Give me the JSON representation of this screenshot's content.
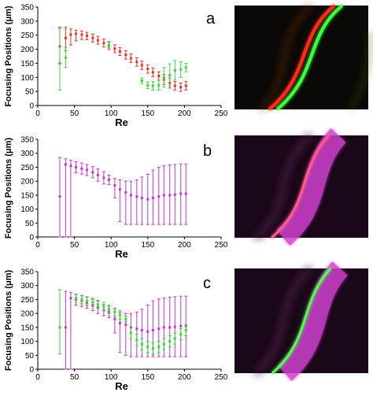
{
  "colors": {
    "red": "#e8322a",
    "green": "#3cd23c",
    "magenta": "#cc33cc",
    "axis": "#000000",
    "image_background": "#0b0a08"
  },
  "ylabel": "Focusing Positions (μm)",
  "xlabel": "Re",
  "chart_data": [
    {
      "panel": "a",
      "type": "scatter",
      "xlabel": "Re",
      "ylabel": "Focusing Positions (μm)",
      "xlim": [
        0,
        250
      ],
      "ylim": [
        0,
        350
      ],
      "xticks": [
        0,
        50,
        100,
        150,
        200,
        250
      ],
      "yticks": [
        0,
        50,
        100,
        150,
        200,
        250,
        300,
        350
      ],
      "series": [
        {
          "color": "red",
          "points": [
            {
              "x": 30,
              "y": 210,
              "lo": 150,
              "hi": 278
            },
            {
              "x": 38,
              "y": 240,
              "lo": 195,
              "hi": 278
            },
            {
              "x": 45,
              "y": 252,
              "lo": 215,
              "hi": 272
            },
            {
              "x": 52,
              "y": 255,
              "lo": 230,
              "hi": 268
            },
            {
              "x": 60,
              "y": 252,
              "lo": 235,
              "hi": 265
            },
            {
              "x": 67,
              "y": 248,
              "lo": 234,
              "hi": 260
            },
            {
              "x": 75,
              "y": 240,
              "lo": 226,
              "hi": 254
            },
            {
              "x": 82,
              "y": 232,
              "lo": 218,
              "hi": 246
            },
            {
              "x": 90,
              "y": 222,
              "lo": 208,
              "hi": 236
            },
            {
              "x": 97,
              "y": 213,
              "lo": 199,
              "hi": 227
            },
            {
              "x": 105,
              "y": 202,
              "lo": 188,
              "hi": 216
            },
            {
              "x": 112,
              "y": 192,
              "lo": 178,
              "hi": 206
            },
            {
              "x": 120,
              "y": 180,
              "lo": 165,
              "hi": 195
            },
            {
              "x": 127,
              "y": 168,
              "lo": 153,
              "hi": 183
            },
            {
              "x": 135,
              "y": 155,
              "lo": 140,
              "hi": 170
            },
            {
              "x": 142,
              "y": 143,
              "lo": 128,
              "hi": 158
            },
            {
              "x": 150,
              "y": 130,
              "lo": 115,
              "hi": 145
            },
            {
              "x": 157,
              "y": 118,
              "lo": 103,
              "hi": 133
            },
            {
              "x": 165,
              "y": 105,
              "lo": 90,
              "hi": 120
            },
            {
              "x": 172,
              "y": 92,
              "lo": 75,
              "hi": 110
            },
            {
              "x": 180,
              "y": 80,
              "lo": 62,
              "hi": 98
            },
            {
              "x": 187,
              "y": 70,
              "lo": 55,
              "hi": 85
            },
            {
              "x": 195,
              "y": 65,
              "lo": 50,
              "hi": 80
            },
            {
              "x": 202,
              "y": 70,
              "lo": 55,
              "hi": 85
            }
          ]
        },
        {
          "color": "green",
          "points": [
            {
              "x": 30,
              "y": 150,
              "lo": 55,
              "hi": 275
            },
            {
              "x": 38,
              "y": 170,
              "lo": 135,
              "hi": 205
            },
            {
              "x": 97,
              "y": 215,
              "lo": 205,
              "hi": 225
            },
            {
              "x": 142,
              "y": 88,
              "lo": 78,
              "hi": 98
            },
            {
              "x": 150,
              "y": 72,
              "lo": 60,
              "hi": 84
            },
            {
              "x": 157,
              "y": 70,
              "lo": 55,
              "hi": 85
            },
            {
              "x": 165,
              "y": 72,
              "lo": 55,
              "hi": 90
            },
            {
              "x": 172,
              "y": 100,
              "lo": 65,
              "hi": 135
            },
            {
              "x": 180,
              "y": 108,
              "lo": 70,
              "hi": 148
            },
            {
              "x": 187,
              "y": 125,
              "lo": 90,
              "hi": 160
            },
            {
              "x": 195,
              "y": 128,
              "lo": 100,
              "hi": 155
            },
            {
              "x": 202,
              "y": 135,
              "lo": 120,
              "hi": 150
            }
          ]
        }
      ]
    },
    {
      "panel": "b",
      "type": "scatter",
      "xlabel": "Re",
      "ylabel": "Focusing Positions (μm)",
      "xlim": [
        0,
        250
      ],
      "ylim": [
        0,
        350
      ],
      "xticks": [
        0,
        50,
        100,
        150,
        200,
        250
      ],
      "yticks": [
        0,
        50,
        100,
        150,
        200,
        250,
        300,
        350
      ],
      "series": [
        {
          "color": "magenta",
          "points": [
            {
              "x": 30,
              "y": 145,
              "lo": 0,
              "hi": 285
            },
            {
              "x": 38,
              "y": 260,
              "lo": 0,
              "hi": 280
            },
            {
              "x": 45,
              "y": 255,
              "lo": 0,
              "hi": 275
            },
            {
              "x": 52,
              "y": 250,
              "lo": 230,
              "hi": 270
            },
            {
              "x": 60,
              "y": 245,
              "lo": 225,
              "hi": 265
            },
            {
              "x": 67,
              "y": 240,
              "lo": 220,
              "hi": 260
            },
            {
              "x": 75,
              "y": 232,
              "lo": 212,
              "hi": 252
            },
            {
              "x": 82,
              "y": 222,
              "lo": 200,
              "hi": 244
            },
            {
              "x": 90,
              "y": 212,
              "lo": 190,
              "hi": 234
            },
            {
              "x": 97,
              "y": 205,
              "lo": 188,
              "hi": 222
            },
            {
              "x": 105,
              "y": 185,
              "lo": 140,
              "hi": 210
            },
            {
              "x": 112,
              "y": 170,
              "lo": 55,
              "hi": 205
            },
            {
              "x": 120,
              "y": 160,
              "lo": 45,
              "hi": 200
            },
            {
              "x": 127,
              "y": 150,
              "lo": 45,
              "hi": 200
            },
            {
              "x": 135,
              "y": 145,
              "lo": 45,
              "hi": 205
            },
            {
              "x": 142,
              "y": 140,
              "lo": 45,
              "hi": 215
            },
            {
              "x": 150,
              "y": 135,
              "lo": 45,
              "hi": 225
            },
            {
              "x": 157,
              "y": 140,
              "lo": 45,
              "hi": 240
            },
            {
              "x": 165,
              "y": 145,
              "lo": 45,
              "hi": 250
            },
            {
              "x": 172,
              "y": 150,
              "lo": 45,
              "hi": 255
            },
            {
              "x": 180,
              "y": 150,
              "lo": 45,
              "hi": 258
            },
            {
              "x": 187,
              "y": 152,
              "lo": 45,
              "hi": 260
            },
            {
              "x": 195,
              "y": 155,
              "lo": 45,
              "hi": 262
            },
            {
              "x": 202,
              "y": 155,
              "lo": 45,
              "hi": 262
            }
          ]
        }
      ]
    },
    {
      "panel": "c",
      "type": "scatter",
      "xlabel": "Re",
      "ylabel": "Focusing Positions (μm)",
      "xlim": [
        0,
        250
      ],
      "ylim": [
        0,
        350
      ],
      "xticks": [
        0,
        50,
        100,
        150,
        200,
        250
      ],
      "yticks": [
        0,
        50,
        100,
        150,
        200,
        250,
        300,
        350
      ],
      "series": [
        {
          "color": "magenta",
          "points": [
            {
              "x": 38,
              "y": 150,
              "lo": 0,
              "hi": 280
            },
            {
              "x": 45,
              "y": 255,
              "lo": 0,
              "hi": 275
            },
            {
              "x": 52,
              "y": 250,
              "lo": 230,
              "hi": 268
            },
            {
              "x": 60,
              "y": 245,
              "lo": 225,
              "hi": 263
            },
            {
              "x": 67,
              "y": 238,
              "lo": 218,
              "hi": 258
            },
            {
              "x": 75,
              "y": 230,
              "lo": 210,
              "hi": 250
            },
            {
              "x": 82,
              "y": 222,
              "lo": 200,
              "hi": 244
            },
            {
              "x": 90,
              "y": 212,
              "lo": 192,
              "hi": 232
            },
            {
              "x": 97,
              "y": 205,
              "lo": 185,
              "hi": 225
            },
            {
              "x": 105,
              "y": 180,
              "lo": 130,
              "hi": 215
            },
            {
              "x": 112,
              "y": 165,
              "lo": 60,
              "hi": 205
            },
            {
              "x": 120,
              "y": 160,
              "lo": 50,
              "hi": 200
            },
            {
              "x": 127,
              "y": 150,
              "lo": 45,
              "hi": 200
            },
            {
              "x": 135,
              "y": 145,
              "lo": 45,
              "hi": 205
            },
            {
              "x": 142,
              "y": 140,
              "lo": 45,
              "hi": 215
            },
            {
              "x": 150,
              "y": 135,
              "lo": 45,
              "hi": 230
            },
            {
              "x": 157,
              "y": 140,
              "lo": 45,
              "hi": 245
            },
            {
              "x": 165,
              "y": 145,
              "lo": 45,
              "hi": 252
            },
            {
              "x": 172,
              "y": 150,
              "lo": 45,
              "hi": 255
            },
            {
              "x": 180,
              "y": 150,
              "lo": 45,
              "hi": 258
            },
            {
              "x": 187,
              "y": 152,
              "lo": 45,
              "hi": 260
            },
            {
              "x": 195,
              "y": 155,
              "lo": 45,
              "hi": 262
            },
            {
              "x": 202,
              "y": 155,
              "lo": 45,
              "hi": 262
            }
          ]
        },
        {
          "color": "green",
          "points": [
            {
              "x": 30,
              "y": 150,
              "lo": 55,
              "hi": 285
            },
            {
              "x": 52,
              "y": 255,
              "lo": 240,
              "hi": 270
            },
            {
              "x": 60,
              "y": 250,
              "lo": 235,
              "hi": 265
            },
            {
              "x": 67,
              "y": 245,
              "lo": 230,
              "hi": 260
            },
            {
              "x": 75,
              "y": 240,
              "lo": 225,
              "hi": 255
            },
            {
              "x": 82,
              "y": 232,
              "lo": 217,
              "hi": 247
            },
            {
              "x": 90,
              "y": 225,
              "lo": 210,
              "hi": 240
            },
            {
              "x": 97,
              "y": 215,
              "lo": 200,
              "hi": 230
            },
            {
              "x": 105,
              "y": 205,
              "lo": 190,
              "hi": 220
            },
            {
              "x": 112,
              "y": 195,
              "lo": 180,
              "hi": 210
            },
            {
              "x": 120,
              "y": 180,
              "lo": 170,
              "hi": 190
            },
            {
              "x": 127,
              "y": 130,
              "lo": 110,
              "hi": 150
            },
            {
              "x": 135,
              "y": 105,
              "lo": 85,
              "hi": 125
            },
            {
              "x": 142,
              "y": 90,
              "lo": 70,
              "hi": 110
            },
            {
              "x": 150,
              "y": 80,
              "lo": 60,
              "hi": 100
            },
            {
              "x": 157,
              "y": 75,
              "lo": 55,
              "hi": 95
            },
            {
              "x": 165,
              "y": 80,
              "lo": 60,
              "hi": 100
            },
            {
              "x": 172,
              "y": 90,
              "lo": 70,
              "hi": 110
            },
            {
              "x": 180,
              "y": 100,
              "lo": 80,
              "hi": 120
            },
            {
              "x": 187,
              "y": 110,
              "lo": 90,
              "hi": 130
            },
            {
              "x": 195,
              "y": 125,
              "lo": 105,
              "hi": 145
            },
            {
              "x": 202,
              "y": 140,
              "lo": 120,
              "hi": 160
            }
          ]
        }
      ]
    }
  ],
  "micrographs": [
    {
      "panel": "a",
      "streams": [
        "red",
        "green"
      ]
    },
    {
      "panel": "b",
      "streams": [
        "magenta"
      ]
    },
    {
      "panel": "c",
      "streams": [
        "magenta",
        "green"
      ]
    }
  ]
}
